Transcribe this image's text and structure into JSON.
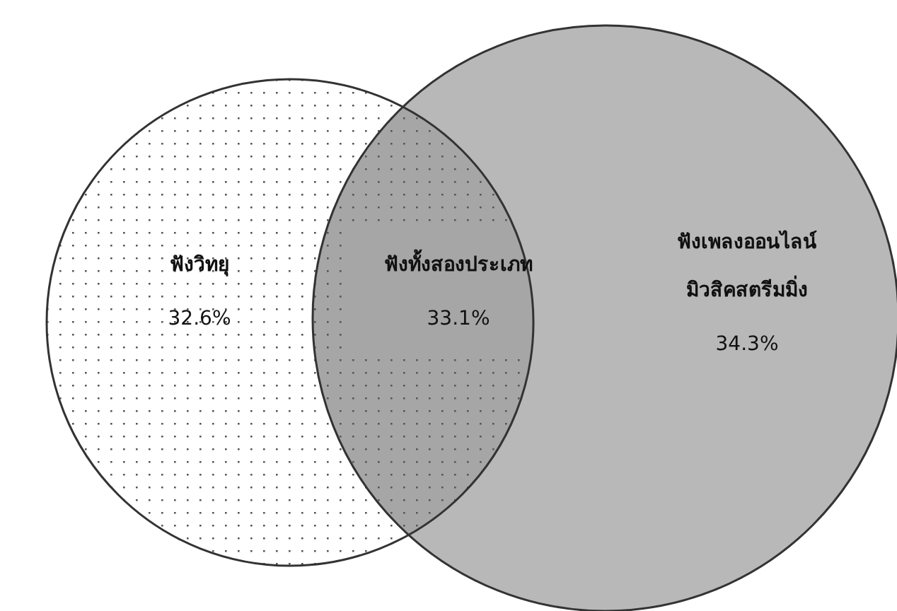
{
  "chart_data": {
    "type": "other",
    "categories": [
      "ฟังวิทยุ",
      "ฟังทั้งสองประเภท",
      "ฟังเพลงออนไลน์\nมิวสิคสตรีมมิ่ง"
    ],
    "values": [
      32.6,
      33.1,
      34.3
    ],
    "value_labels": [
      "32.6%",
      "33.1%",
      "34.3%"
    ],
    "colors": [
      "#ffffff",
      "#a6a6a6",
      "#b8b8b8"
    ]
  }
}
